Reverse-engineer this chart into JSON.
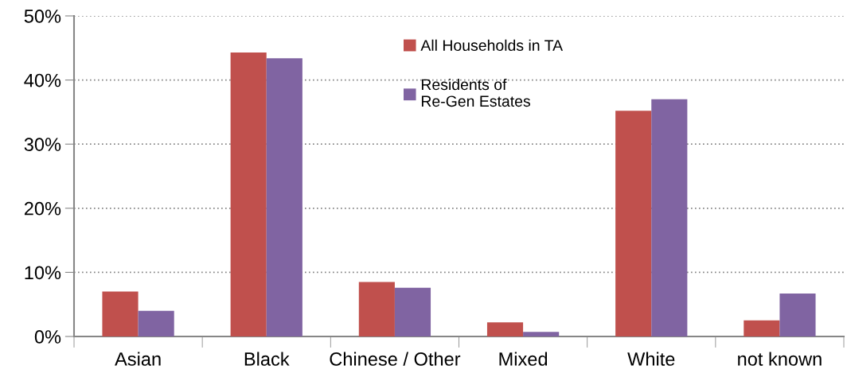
{
  "chart_data": {
    "type": "bar",
    "categories": [
      "Asian",
      "Black",
      "Chinese / Other",
      "Mixed",
      "White",
      "not known"
    ],
    "series": [
      {
        "name": "All Households in TA",
        "color": "#c0504d",
        "values": [
          7.0,
          44.3,
          8.5,
          2.2,
          35.2,
          2.5
        ]
      },
      {
        "name": "Residents of\nRe-Gen Estates",
        "color": "#8064a2",
        "values": [
          4.0,
          43.4,
          7.6,
          0.7,
          37.0,
          6.7
        ]
      }
    ],
    "ylim": [
      0,
      50
    ],
    "yticks": [
      {
        "value": 0,
        "label": "0%"
      },
      {
        "value": 10,
        "label": "10%"
      },
      {
        "value": 20,
        "label": "20%"
      },
      {
        "value": 30,
        "label": "30%"
      },
      {
        "value": 40,
        "label": "40%"
      },
      {
        "value": 50,
        "label": "50%"
      }
    ],
    "grid": "y",
    "legend": "top"
  }
}
